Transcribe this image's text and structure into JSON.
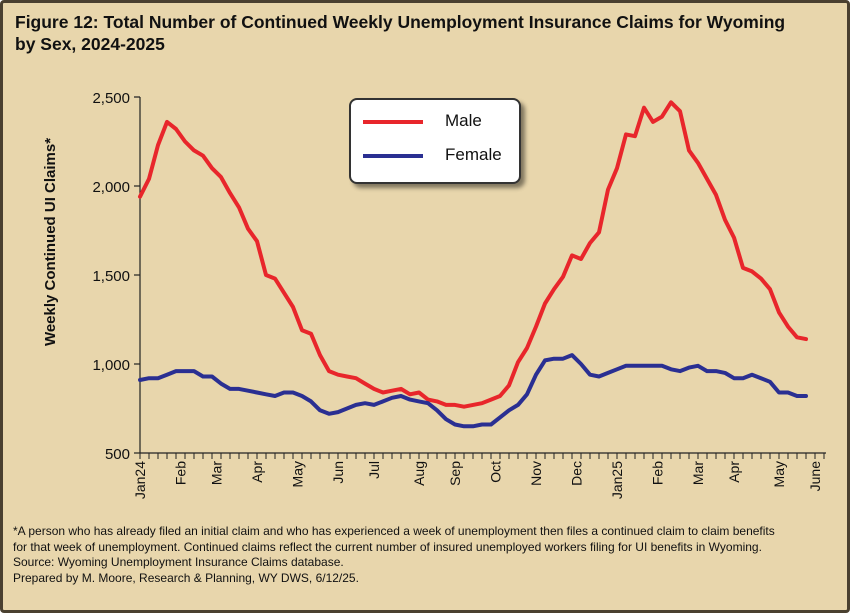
{
  "title_line1": "Figure 12: Total Number of Continued Weekly Unemployment Insurance Claims for Wyoming",
  "title_line2": "by Sex, 2024-2025",
  "notes": [
    "*A person who has already filed an initial claim and who has experienced a week of unemployment then files a continued claim to claim benefits",
    "for that week of unemployment. Continued claims reflect the current number of insured unemployed workers filing for UI benefits in Wyoming.",
    "Source: Wyoming Unemployment Insurance Claims database.",
    "Prepared by M. Moore, Research & Planning, WY DWS, 6/12/25."
  ],
  "chart_data": {
    "type": "line",
    "title": "Figure 12: Total Number of Continued Weekly Unemployment Insurance Claims for Wyoming by Sex, 2024-2025",
    "xlabel": "",
    "ylabel": "Weekly Continued UI Claims*",
    "ylim": [
      500,
      2500
    ],
    "yticks": [
      500,
      1000,
      1500,
      2000,
      2500
    ],
    "ytick_labels": [
      "500",
      "1,000",
      "1,500",
      "2,000",
      "2,500"
    ],
    "x_tick_labels": [
      "Jan24",
      "Feb",
      "Mar",
      "Apr",
      "May",
      "Jun",
      "Jul",
      "Aug",
      "Sep",
      "Oct",
      "Nov",
      "Dec",
      "Jan25",
      "Feb",
      "Mar",
      "Apr",
      "May",
      "June"
    ],
    "x_tick_weeks": [
      0,
      4.5,
      8.5,
      13,
      17.5,
      22,
      26,
      31,
      35,
      39.5,
      44,
      48.5,
      53,
      57.5,
      62,
      66,
      71,
      75
    ],
    "legend_position": "top-center",
    "grid": false,
    "series": [
      {
        "name": "Male",
        "color": "#e8262b",
        "values": [
          1940,
          2040,
          2230,
          2360,
          2320,
          2250,
          2200,
          2170,
          2100,
          2050,
          1960,
          1880,
          1760,
          1690,
          1500,
          1480,
          1400,
          1320,
          1190,
          1170,
          1050,
          960,
          940,
          930,
          920,
          890,
          860,
          840,
          850,
          860,
          830,
          840,
          800,
          790,
          770,
          770,
          760,
          770,
          780,
          800,
          820,
          880,
          1010,
          1090,
          1210,
          1340,
          1420,
          1490,
          1610,
          1590,
          1680,
          1740,
          1980,
          2100,
          2290,
          2280,
          2440,
          2360,
          2390,
          2470,
          2420,
          2200,
          2130,
          2040,
          1950,
          1810,
          1710,
          1540,
          1520,
          1480,
          1420,
          1290,
          1210,
          1150,
          1140
        ]
      },
      {
        "name": "Female",
        "color": "#2a2f92",
        "values": [
          910,
          920,
          920,
          940,
          960,
          960,
          960,
          930,
          930,
          890,
          860,
          860,
          850,
          840,
          830,
          820,
          840,
          840,
          820,
          790,
          740,
          720,
          730,
          750,
          770,
          780,
          770,
          790,
          810,
          820,
          800,
          790,
          780,
          740,
          690,
          660,
          650,
          650,
          660,
          660,
          700,
          740,
          770,
          830,
          940,
          1020,
          1030,
          1030,
          1050,
          1000,
          940,
          930,
          950,
          970,
          990,
          990,
          990,
          990,
          990,
          970,
          960,
          980,
          990,
          960,
          960,
          950,
          920,
          920,
          940,
          920,
          900,
          840,
          840,
          820,
          820
        ]
      }
    ]
  }
}
